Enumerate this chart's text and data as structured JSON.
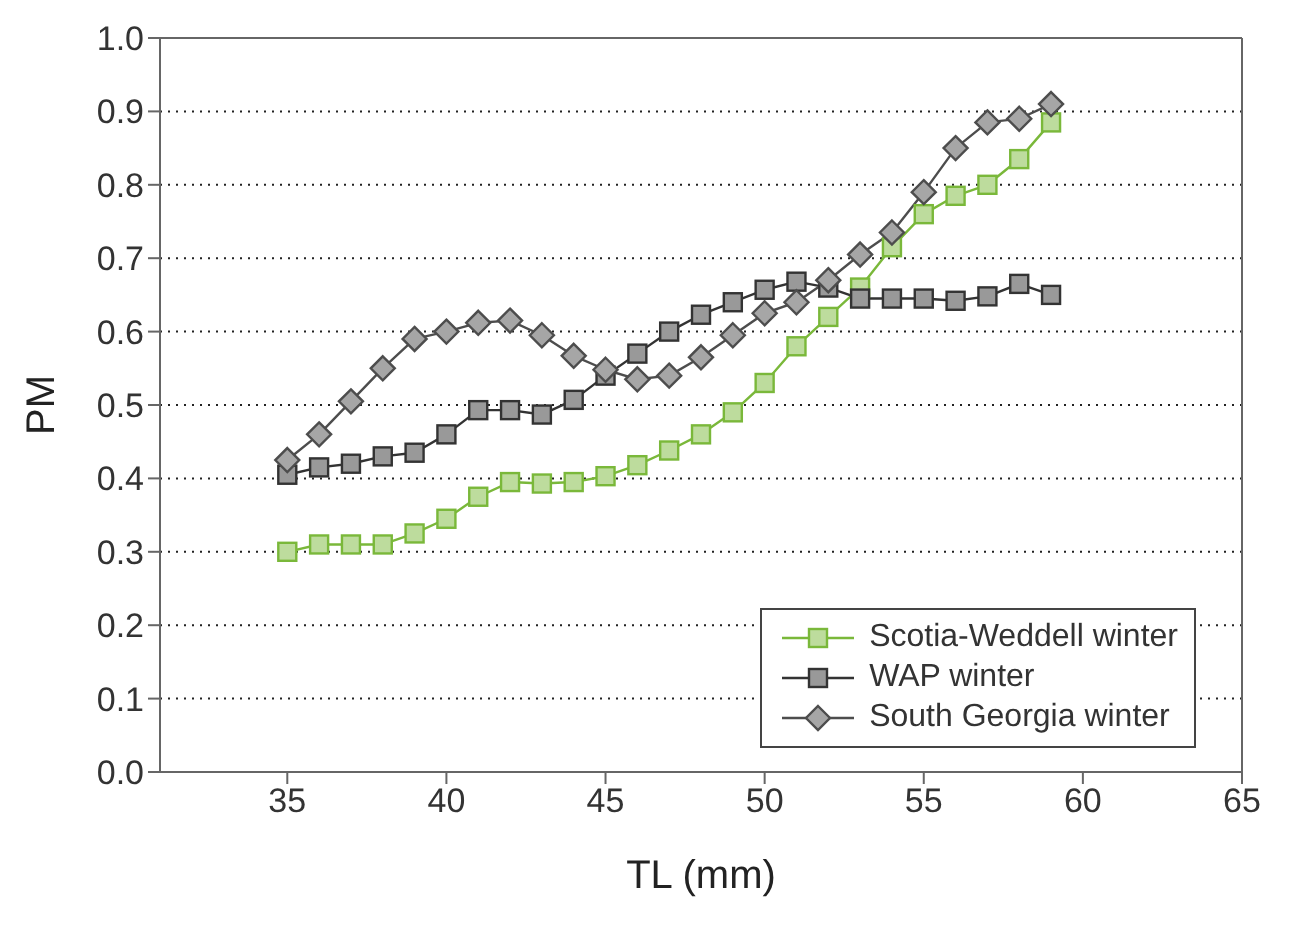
{
  "chart_data": {
    "type": "line",
    "xlabel": "TL (mm)",
    "ylabel": "PM",
    "x": [
      35,
      36,
      37,
      38,
      39,
      40,
      41,
      42,
      43,
      44,
      45,
      46,
      47,
      48,
      49,
      50,
      51,
      52,
      53,
      54,
      55,
      56,
      57,
      58,
      59
    ],
    "series": [
      {
        "name": "Scotia-Weddell winter",
        "color": "#7ab83a",
        "marker": "square",
        "values": [
          0.3,
          0.31,
          0.31,
          0.31,
          0.325,
          0.345,
          0.375,
          0.395,
          0.393,
          0.395,
          0.403,
          0.418,
          0.438,
          0.46,
          0.49,
          0.53,
          0.58,
          0.62,
          0.66,
          0.715,
          0.76,
          0.785,
          0.8,
          0.835,
          0.885
        ]
      },
      {
        "name": "WAP winter",
        "color": "#333333",
        "marker": "square",
        "values": [
          0.405,
          0.415,
          0.42,
          0.43,
          0.435,
          0.46,
          0.493,
          0.493,
          0.487,
          0.507,
          0.54,
          0.57,
          0.6,
          0.623,
          0.64,
          0.657,
          0.668,
          0.66,
          0.645,
          0.645,
          0.645,
          0.642,
          0.648,
          0.665,
          0.65
        ]
      },
      {
        "name": "South Georgia winter",
        "color": "#4d4d4d",
        "marker": "diamond",
        "values": [
          0.425,
          0.46,
          0.505,
          0.55,
          0.59,
          0.6,
          0.612,
          0.615,
          0.595,
          0.567,
          0.548,
          0.535,
          0.54,
          0.565,
          0.595,
          0.625,
          0.64,
          0.67,
          0.705,
          0.735,
          0.79,
          0.85,
          0.885,
          0.89,
          0.91
        ]
      }
    ],
    "xlim": [
      31,
      65
    ],
    "xticks": [
      35,
      40,
      45,
      50,
      55,
      60,
      65
    ],
    "ylim": [
      0,
      1
    ],
    "yticks": [
      {
        "value": 0,
        "label": "0.0"
      },
      {
        "value": 0.1,
        "label": "0.1"
      },
      {
        "value": 0.2,
        "label": "0.2"
      },
      {
        "value": 0.3,
        "label": "0.3"
      },
      {
        "value": 0.4,
        "label": "0.4"
      },
      {
        "value": 0.5,
        "label": "0.5"
      },
      {
        "value": 0.6,
        "label": "0.6"
      },
      {
        "value": 0.7,
        "label": "0.7"
      },
      {
        "value": 0.8,
        "label": "0.8"
      },
      {
        "value": 0.9,
        "label": "0.9"
      },
      {
        "value": 1,
        "label": "1.0"
      }
    ],
    "grid": "y",
    "legend": "bottom right",
    "line_style": "solid"
  }
}
